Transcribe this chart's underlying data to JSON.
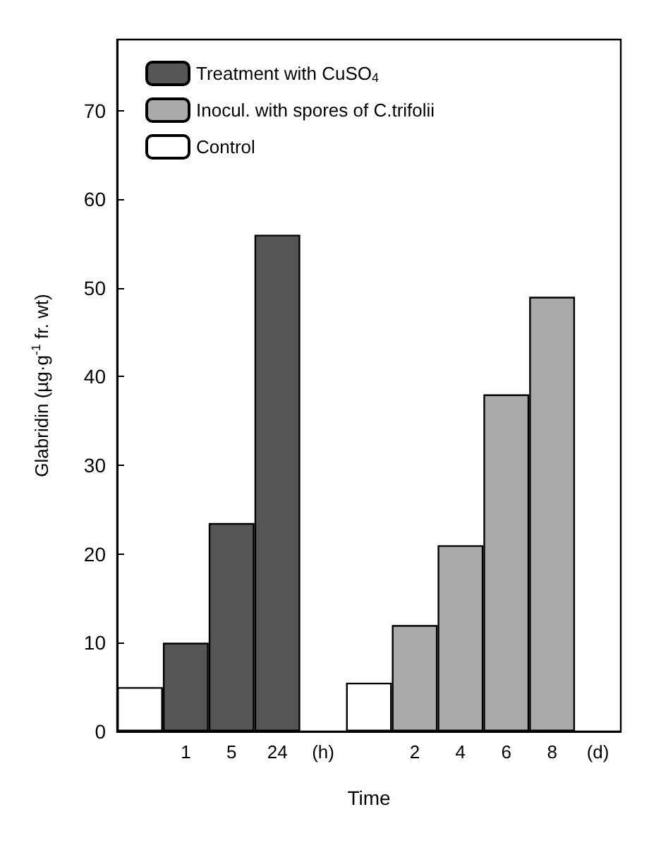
{
  "chart_data": {
    "type": "bar",
    "xlabel": "Time",
    "ylabel": "Glabridin (µg·g$^{-1}$ fr. wt)",
    "categories": [
      null,
      "1",
      "5",
      "24",
      "(h)",
      null,
      "2",
      "4",
      "6",
      "8",
      "(d)"
    ],
    "series": [
      {
        "name": "Treatment with CuSO$_{4}$",
        "color": "#555555",
        "values": [
          null,
          10,
          23.5,
          56,
          null,
          null,
          null,
          null,
          null,
          null,
          null
        ]
      },
      {
        "name": "Inocul. with spores of C.trifolii",
        "color": "#aaaaaa",
        "values": [
          null,
          null,
          null,
          null,
          null,
          null,
          12,
          21,
          38,
          49,
          null
        ]
      },
      {
        "name": "Control",
        "color": "#ffffff",
        "values": [
          5,
          null,
          null,
          null,
          null,
          5.5,
          null,
          null,
          null,
          null,
          null
        ]
      }
    ],
    "ylim": [
      0,
      78
    ],
    "yticks": [
      0,
      10,
      20,
      30,
      40,
      50,
      60,
      70
    ],
    "legend": "top left",
    "grid": false
  }
}
